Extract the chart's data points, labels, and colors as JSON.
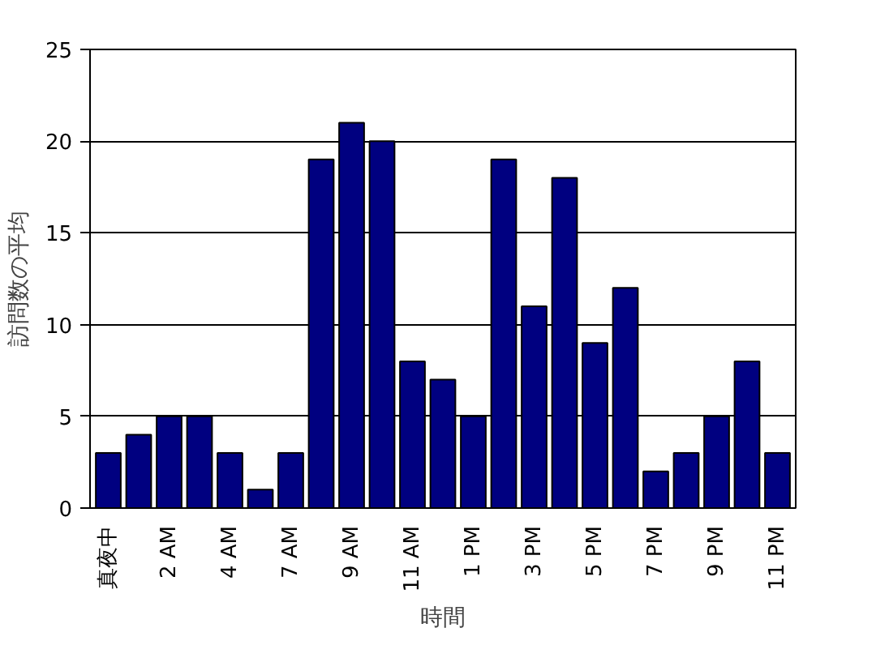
{
  "chart_data": {
    "type": "bar",
    "xlabel": "時間",
    "ylabel": "訪問数の平均",
    "categories": [
      "真夜中",
      null,
      "2 AM",
      null,
      "4 AM",
      null,
      "7 AM",
      null,
      "9 AM",
      null,
      "11 AM",
      null,
      "1 PM",
      null,
      "3 PM",
      null,
      "5 PM",
      null,
      "7 PM",
      null,
      "9 PM",
      null,
      "11 PM"
    ],
    "values": [
      3,
      4,
      5,
      5,
      3,
      1,
      3,
      19,
      21,
      20,
      8,
      7,
      5,
      19,
      11,
      18,
      9,
      12,
      2,
      3,
      5,
      8,
      3
    ],
    "color": "#000080",
    "ylim": [
      0,
      25
    ],
    "yticks": [
      0,
      5,
      10,
      15,
      20,
      25
    ],
    "grid": "y"
  }
}
